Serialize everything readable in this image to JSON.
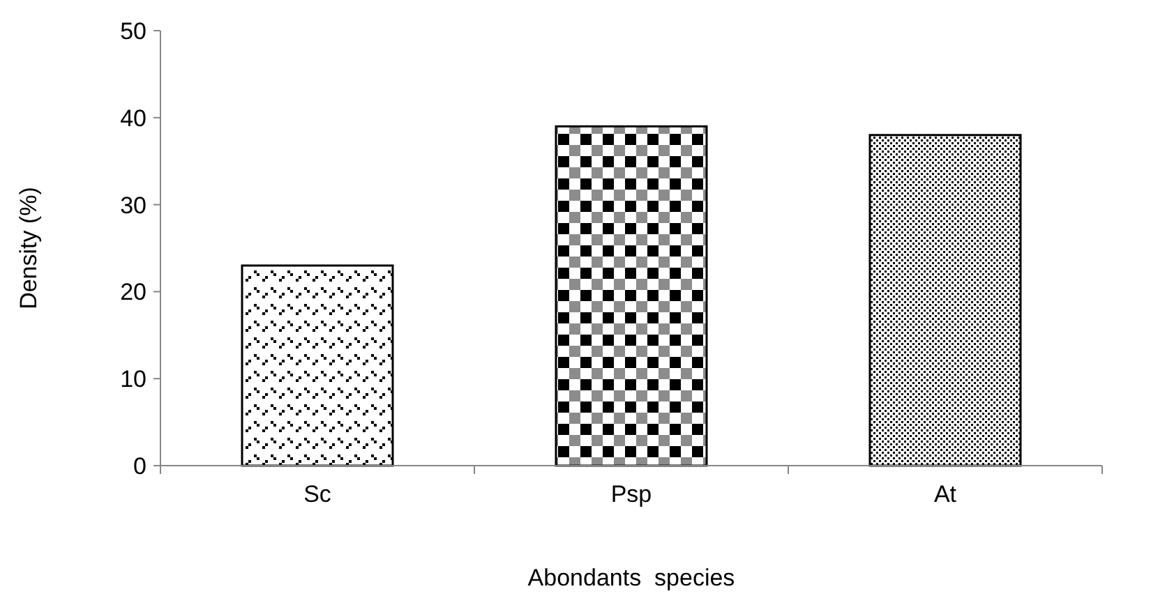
{
  "chart_data": {
    "type": "bar",
    "xlabel": "Abondants  species",
    "ylabel": "Density (%)",
    "categories": [
      "Sc",
      "Psp",
      "At"
    ],
    "values": [
      23,
      39,
      38
    ],
    "colors": [
      "#000000",
      "#000000",
      "#000000"
    ],
    "ylim": [
      0,
      50
    ],
    "yticks": [
      0,
      10,
      20,
      30,
      40,
      50
    ],
    "grid": false
  }
}
